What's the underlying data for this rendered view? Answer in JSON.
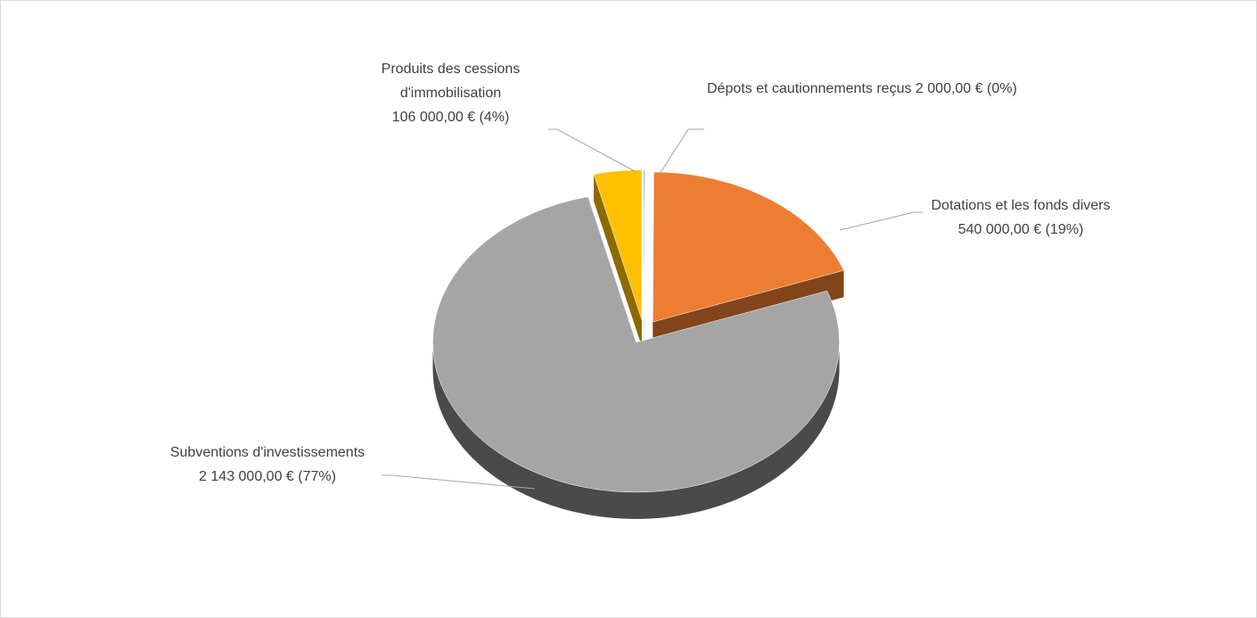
{
  "chart_data": {
    "type": "pie3d",
    "categories": [
      "Dépots et cautionnements reçus",
      "Dotations et les fonds divers",
      "Subventions d'investissements",
      "Produits des cessions d'immobilisation"
    ],
    "values": [
      2000,
      540000,
      2143000,
      106000
    ],
    "value_labels": [
      "2 000,00 € (0%)",
      "540 000,00 € (19%)",
      "2 143 000,00 € (77%)",
      "106 000,00 € (4%)"
    ],
    "colors": [
      "#4472c4",
      "#ed7d31",
      "#a5a5a5",
      "#ffc000"
    ]
  }
}
